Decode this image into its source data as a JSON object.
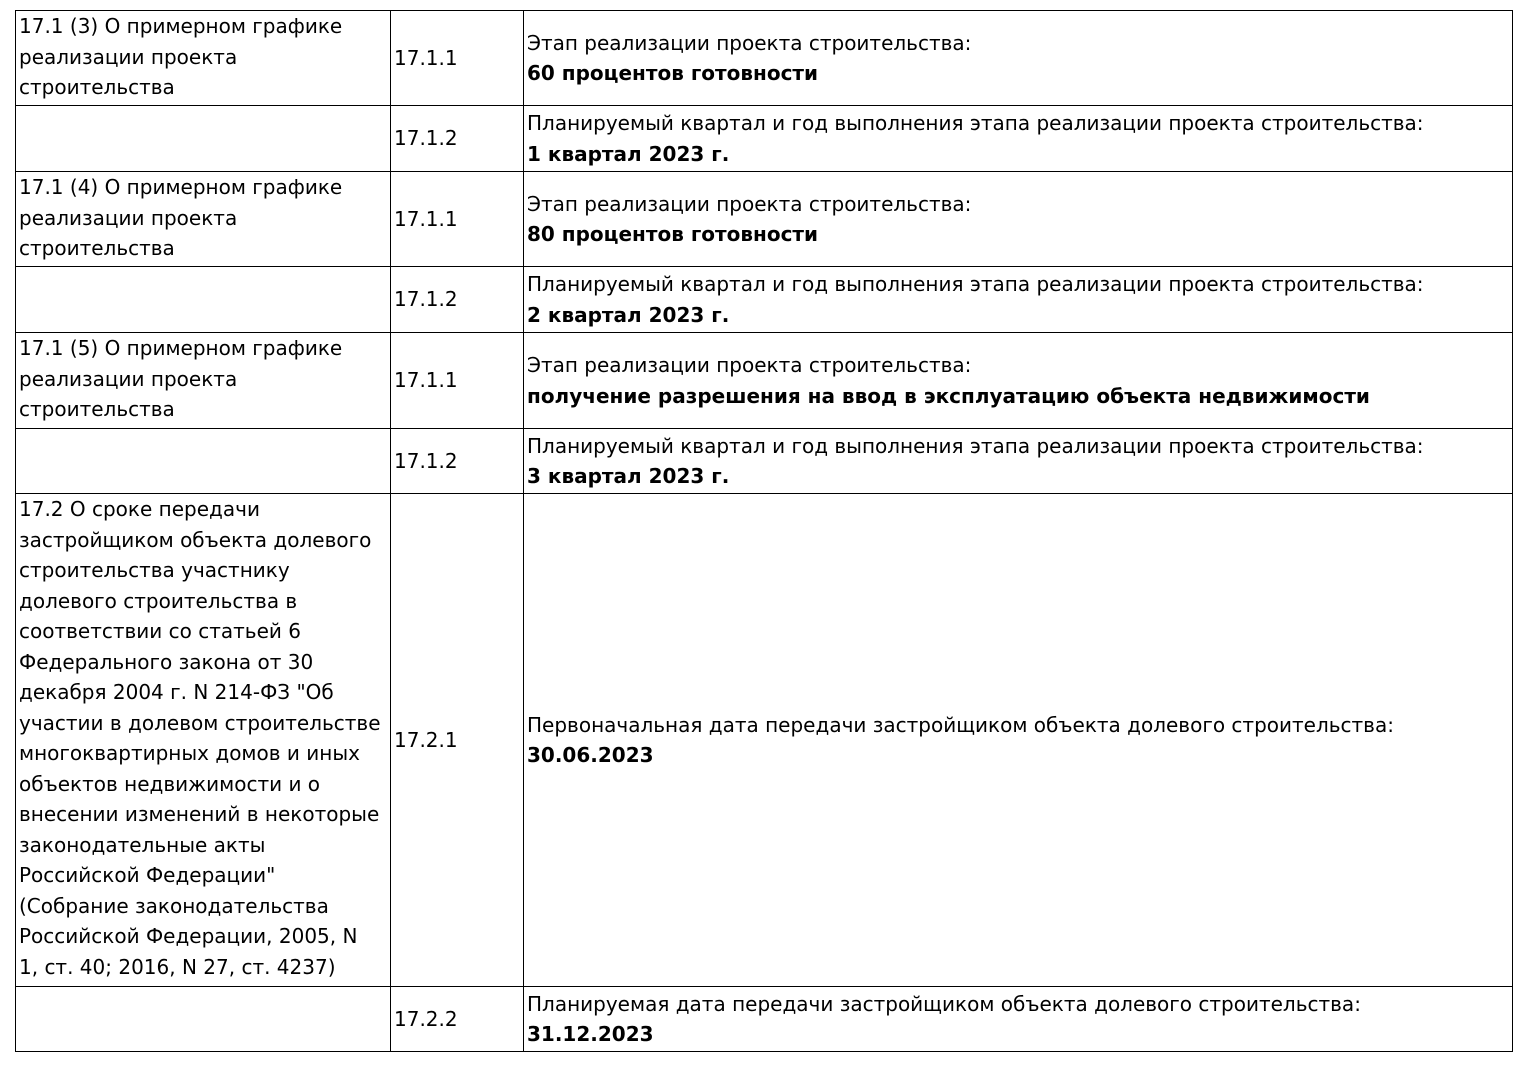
{
  "rows": [
    {
      "section": "17.1 (3) О примерном графике\nреализации проекта\nстроительства",
      "code": "17.1.1",
      "label": "Этап реализации проекта строительства:",
      "value": "60 процентов готовности"
    },
    {
      "section": "",
      "code": "17.1.2",
      "label": "Планируемый квартал и год выполнения этапа реализации проекта строительства:",
      "value": "1 квартал 2023 г."
    },
    {
      "section": "17.1 (4) О примерном графике\nреализации проекта\nстроительства",
      "code": "17.1.1",
      "label": "Этап реализации проекта строительства:",
      "value": "80 процентов готовности"
    },
    {
      "section": "",
      "code": "17.1.2",
      "label": "Планируемый квартал и год выполнения этапа реализации проекта строительства:",
      "value": "2 квартал 2023 г."
    },
    {
      "section": "17.1 (5) О примерном графике\nреализации проекта\nстроительства",
      "code": "17.1.1",
      "label": "Этап реализации проекта строительства:",
      "value": "получение разрешения на ввод в эксплуатацию объекта недвижимости"
    },
    {
      "section": "",
      "code": "17.1.2",
      "label": "Планируемый квартал и год выполнения этапа реализации проекта строительства:",
      "value": "3 квартал 2023 г."
    },
    {
      "section": "17.2 О сроке передачи\nзастройщиком объекта долевого\nстроительства участнику\nдолевого строительства в\nсоответствии со статьей 6\nФедерального закона от 30\nдекабря 2004 г. N 214-ФЗ \"Об\nучастии в долевом строительстве\nмногоквартирных домов и иных\nобъектов недвижимости и о\nвнесении изменений в некоторые\nзаконодательные акты\nРоссийской Федерации\"\n(Собрание законодательства\nРоссийской Федерации, 2005, N\n1, ст. 40; 2016, N 27, ст. 4237)",
      "code": "17.2.1",
      "label": "Первоначальная дата передачи застройщиком объекта долевого строительства:",
      "value": "30.06.2023"
    },
    {
      "section": "",
      "code": "17.2.2",
      "label": "Планируемая дата передачи застройщиком объекта долевого строительства:",
      "value": "31.12.2023"
    }
  ]
}
